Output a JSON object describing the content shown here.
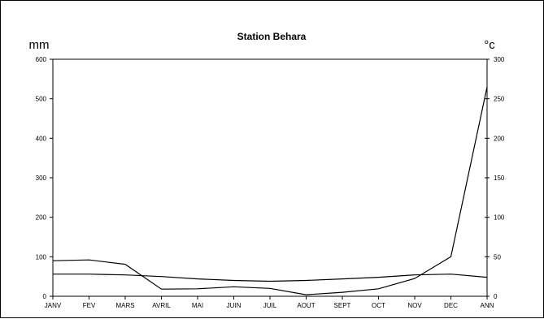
{
  "chart_data": {
    "type": "line",
    "title": "Station Behara",
    "y_left_label": "mm",
    "y_right_label": "°c",
    "categories": [
      "JANV",
      "FEV",
      "MARS",
      "AVRIL",
      "MAI",
      "JUIN",
      "JUIL",
      "AOUT",
      "SEPT",
      "OCT",
      "NOV",
      "DEC",
      "ANN"
    ],
    "y_left": {
      "min": 0,
      "max": 600,
      "ticks": [
        "0",
        "100",
        "200",
        "300",
        "400",
        "500",
        "600"
      ]
    },
    "y_right": {
      "min": 0,
      "max": 300,
      "ticks": [
        "0",
        "50",
        "100",
        "150",
        "200",
        "250",
        "300"
      ]
    },
    "grid": false,
    "series": [
      {
        "axis": "left",
        "values": [
          90,
          92,
          81,
          18,
          19,
          24,
          20,
          4,
          10,
          19,
          45,
          100,
          530
        ]
      },
      {
        "axis": "right",
        "values": [
          28,
          28,
          27,
          25,
          22,
          20,
          19,
          20,
          22,
          24,
          27,
          28,
          24
        ]
      }
    ],
    "line_color": "#000000"
  }
}
